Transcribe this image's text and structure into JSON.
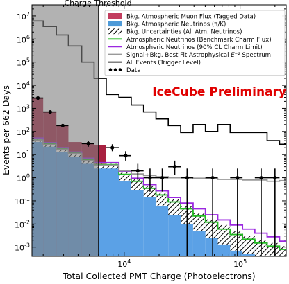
{
  "chart_data": {
    "type": "histogram",
    "xlabel": "Total Collected PMT Charge (Photoelectrons)",
    "ylabel": "Events per 662 Days",
    "xscale": "log",
    "yscale": "log",
    "xlim": [
      1600,
      250000
    ],
    "ylim": [
      0.0004,
      30000000
    ],
    "x_ticks": [
      {
        "value": 10000,
        "base": "10",
        "exp": "4"
      },
      {
        "value": 100000,
        "base": "10",
        "exp": "5"
      }
    ],
    "y_ticks": [
      {
        "value": 0.001,
        "base": "10",
        "exp": "-3"
      },
      {
        "value": 0.01,
        "base": "10",
        "exp": "-2"
      },
      {
        "value": 0.1,
        "base": "10",
        "exp": "-1"
      },
      {
        "value": 1,
        "base": "10",
        "exp": "0"
      },
      {
        "value": 10,
        "base": "10",
        "exp": "1"
      },
      {
        "value": 100,
        "base": "10",
        "exp": "2"
      },
      {
        "value": 1000,
        "base": "10",
        "exp": "3"
      },
      {
        "value": 10000,
        "base": "10",
        "exp": "4"
      },
      {
        "value": 100000,
        "base": "10",
        "exp": "5"
      },
      {
        "value": 1000000,
        "base": "10",
        "exp": "6"
      },
      {
        "value": 10000000,
        "base": "10",
        "exp": "7"
      }
    ],
    "threshold": {
      "label": "Charge Threshold",
      "x": 6000
    },
    "watermark": "IceCube Preliminary",
    "bin_edges": [
      1600,
      2000,
      2600,
      3300,
      4300,
      5500,
      7000,
      9000,
      11500,
      14700,
      18800,
      24000,
      30700,
      39300,
      50200,
      64200,
      82100,
      105000,
      134000,
      171000,
      219000,
      250000
    ],
    "series": [
      {
        "name": "Bkg. Atmospheric Muon Flux (Tagged Data)",
        "style": "fill",
        "color": "#a82040",
        "values": [
          2800,
          700,
          180,
          35,
          30,
          25,
          0,
          0,
          0,
          0,
          0,
          0,
          0,
          0,
          0,
          0,
          0,
          0,
          0,
          0,
          0
        ]
      },
      {
        "name": "Bkg. Atmospheric Neutrinos (π/K)",
        "style": "fill",
        "color": "#5ba1e6",
        "values": [
          40,
          25,
          15,
          10,
          5,
          3,
          3,
          1.1,
          0.5,
          0.25,
          0.12,
          0.05,
          0.025,
          0.012,
          0.006,
          0.0035,
          0.002,
          0.0013,
          0.001,
          0.0007,
          0.0005
        ]
      },
      {
        "name": "Bkg. Uncertainties (All Atm. Neutrinos)",
        "style": "hatch",
        "color": "#000000",
        "low": [
          35,
          22,
          13,
          8,
          4,
          2.5,
          2.5,
          0.7,
          0.3,
          0.15,
          0.06,
          0.025,
          0.01,
          0.005,
          0.0025,
          0.0013,
          0.0007,
          0.0005,
          0.0004,
          0.0004,
          0.0004
        ],
        "high": [
          52,
          33,
          21,
          13,
          7,
          4,
          4,
          1.7,
          0.85,
          0.45,
          0.23,
          0.12,
          0.06,
          0.03,
          0.016,
          0.009,
          0.005,
          0.003,
          0.002,
          0.0015,
          0.0011
        ]
      },
      {
        "name": "Atmospheric Neutrinos (Benchmark Charm Flux)",
        "style": "step",
        "color": "#22bb22",
        "values": [
          48,
          30,
          18,
          12,
          6,
          3.7,
          3.7,
          1.4,
          0.7,
          0.35,
          0.18,
          0.09,
          0.045,
          0.022,
          0.012,
          0.006,
          0.0035,
          0.0022,
          0.0015,
          0.0011,
          0.0008
        ]
      },
      {
        "name": "Atmospheric Neutrinos (90% CL Charm Limit)",
        "style": "step",
        "color": "#9b28e0",
        "values": [
          52,
          33,
          20,
          13,
          7,
          4.5,
          4.5,
          1.8,
          0.95,
          0.5,
          0.27,
          0.14,
          0.08,
          0.045,
          0.025,
          0.015,
          0.009,
          0.006,
          0.004,
          0.0028,
          0.0018
        ]
      },
      {
        "name": "Signal+Bkg. Best Fit Astrophysical ",
        "name_sup": "E⁻²",
        "name_after": " Spectrum",
        "style": "step",
        "color": "#999999",
        "values": [
          42,
          27,
          17,
          11,
          5.5,
          3.5,
          3.5,
          2.0,
          1.45,
          1.25,
          1.1,
          1.0,
          1.0,
          0.95,
          0.9,
          0.85,
          0.85,
          0.8,
          0.8,
          0.7,
          0.75
        ]
      },
      {
        "name": "All Events (Trigger Level)",
        "style": "step",
        "color": "#000000",
        "values": [
          6000000,
          3500000,
          1500000,
          500000,
          100000,
          20000,
          4000,
          3000,
          1400,
          700,
          350,
          180,
          90,
          200,
          100,
          200,
          90,
          90,
          90,
          40,
          28
        ]
      }
    ],
    "data_points": {
      "name": "Data",
      "points": [
        {
          "x": 1800,
          "y": 2800,
          "xlo": 1600,
          "xhi": 2000,
          "ylo": 2600,
          "yhi": 3000
        },
        {
          "x": 2300,
          "y": 700,
          "xlo": 2000,
          "xhi": 2600,
          "ylo": 600,
          "yhi": 800
        },
        {
          "x": 2950,
          "y": 180,
          "xlo": 2600,
          "xhi": 3300,
          "ylo": 150,
          "yhi": 210
        },
        {
          "x": 4900,
          "y": 30,
          "xlo": 4300,
          "xhi": 5500,
          "ylo": 22,
          "yhi": 38
        },
        {
          "x": 7900,
          "y": 20,
          "xlo": 7000,
          "xhi": 9000,
          "ylo": 14,
          "yhi": 28
        },
        {
          "x": 10300,
          "y": 9,
          "xlo": 9000,
          "xhi": 11500,
          "ylo": 5.5,
          "yhi": 14
        },
        {
          "x": 13100,
          "y": 2,
          "xlo": 11500,
          "xhi": 14700,
          "ylo": 0.8,
          "yhi": 4
        },
        {
          "x": 16700,
          "y": 1,
          "xlo": 14700,
          "xhi": 18800,
          "ylo": 0.25,
          "yhi": 2.5
        },
        {
          "x": 21300,
          "y": 1,
          "xlo": 18800,
          "xhi": 24000,
          "ylo": 0.25,
          "yhi": 2.5
        },
        {
          "x": 27300,
          "y": 3,
          "xlo": 24000,
          "xhi": 30700,
          "ylo": 1.3,
          "yhi": 5.5
        },
        {
          "x": 34900,
          "y": 1,
          "xlo": 30700,
          "xhi": 39300,
          "ylo": 0.0004,
          "yhi": 2.5
        },
        {
          "x": 58000,
          "y": 1,
          "xlo": 50200,
          "xhi": 64200,
          "ylo": 0.0004,
          "yhi": 2.5
        },
        {
          "x": 95000,
          "y": 1,
          "xlo": 82100,
          "xhi": 105000,
          "ylo": 0.0004,
          "yhi": 2.5
        },
        {
          "x": 152000,
          "y": 1,
          "xlo": 134000,
          "xhi": 171000,
          "ylo": 0.0004,
          "yhi": 2.5
        },
        {
          "x": 200000,
          "y": 1,
          "xlo": 171000,
          "xhi": 219000,
          "ylo": 0.0004,
          "yhi": 2.5
        }
      ]
    },
    "legend": {
      "placement": "upper-right",
      "entries": [
        {
          "label": "Bkg. Atmospheric Muon Flux (Tagged Data)",
          "swatch": "fill",
          "color": "#c23c5e"
        },
        {
          "label": "Bkg. Atmospheric Neutrinos (π/K)",
          "swatch": "fill",
          "color": "#4e9ad8"
        },
        {
          "label": "Bkg. Uncertainties (All Atm. Neutrinos)",
          "swatch": "hatch",
          "color": "#000000"
        },
        {
          "label": "Atmospheric Neutrinos (Benchmark Charm Flux)",
          "swatch": "line",
          "color": "#22bb22"
        },
        {
          "label": "Atmospheric Neutrinos (90% CL Charm Limit)",
          "swatch": "line",
          "color": "#9b28e0"
        },
        {
          "label": "Signal+Bkg. Best Fit Astrophysical ",
          "sup": "E⁻²",
          "after": " Spectrum",
          "swatch": "line",
          "color": "#999999"
        },
        {
          "label": "All Events (Trigger Level)",
          "swatch": "line",
          "color": "#000000"
        },
        {
          "label": "Data",
          "swatch": "points",
          "color": "#000000"
        }
      ]
    }
  }
}
